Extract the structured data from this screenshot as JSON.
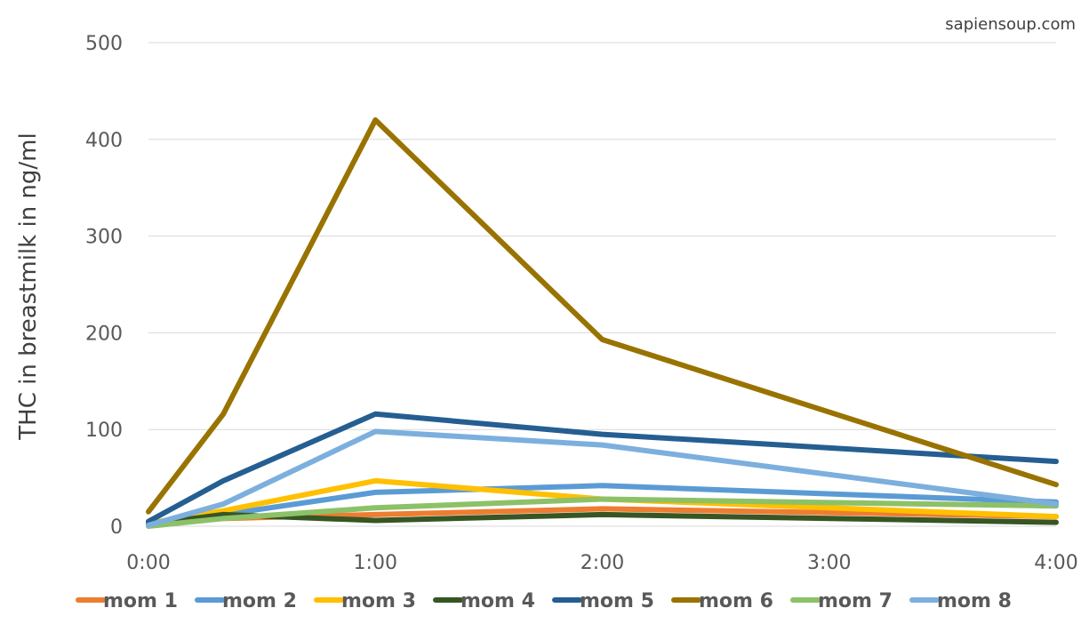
{
  "chart_data": {
    "type": "line",
    "title": "",
    "xlabel": "",
    "ylabel": "THC in breastmilk in ng/ml",
    "watermark": "sapiensoup.com",
    "xlim": [
      0,
      4
    ],
    "ylim": [
      0,
      500
    ],
    "x_ticks": [
      0,
      1,
      2,
      3,
      4
    ],
    "x_tick_labels": [
      "0:00",
      "1:00",
      "2:00",
      "3:00",
      "4:00"
    ],
    "y_ticks": [
      0,
      100,
      200,
      300,
      400,
      500
    ],
    "y_tick_labels": [
      "0",
      "100",
      "200",
      "300",
      "400",
      "500"
    ],
    "grid": "horizontal",
    "legend_position": "bottom",
    "x": [
      0,
      0.33,
      1,
      2,
      4
    ],
    "series": [
      {
        "name": "mom 1",
        "color": "#ED7D31",
        "values": [
          2,
          8,
          12,
          18,
          10
        ]
      },
      {
        "name": "mom 2",
        "color": "#5B9BD5",
        "values": [
          1,
          12,
          35,
          42,
          25
        ]
      },
      {
        "name": "mom 3",
        "color": "#FFC000",
        "values": [
          3,
          16,
          47,
          28,
          10
        ]
      },
      {
        "name": "mom 4",
        "color": "#375623",
        "values": [
          2,
          12,
          6,
          12,
          4
        ]
      },
      {
        "name": "mom 5",
        "color": "#255E91",
        "values": [
          5,
          47,
          116,
          95,
          67
        ]
      },
      {
        "name": "mom 6",
        "color": "#997300",
        "values": [
          15,
          116,
          420,
          193,
          43
        ]
      },
      {
        "name": "mom 7",
        "color": "#8CC168",
        "values": [
          0,
          8,
          19,
          28,
          21
        ]
      },
      {
        "name": "mom 8",
        "color": "#7CAFDD",
        "values": [
          1,
          23,
          98,
          84,
          23
        ]
      }
    ]
  }
}
